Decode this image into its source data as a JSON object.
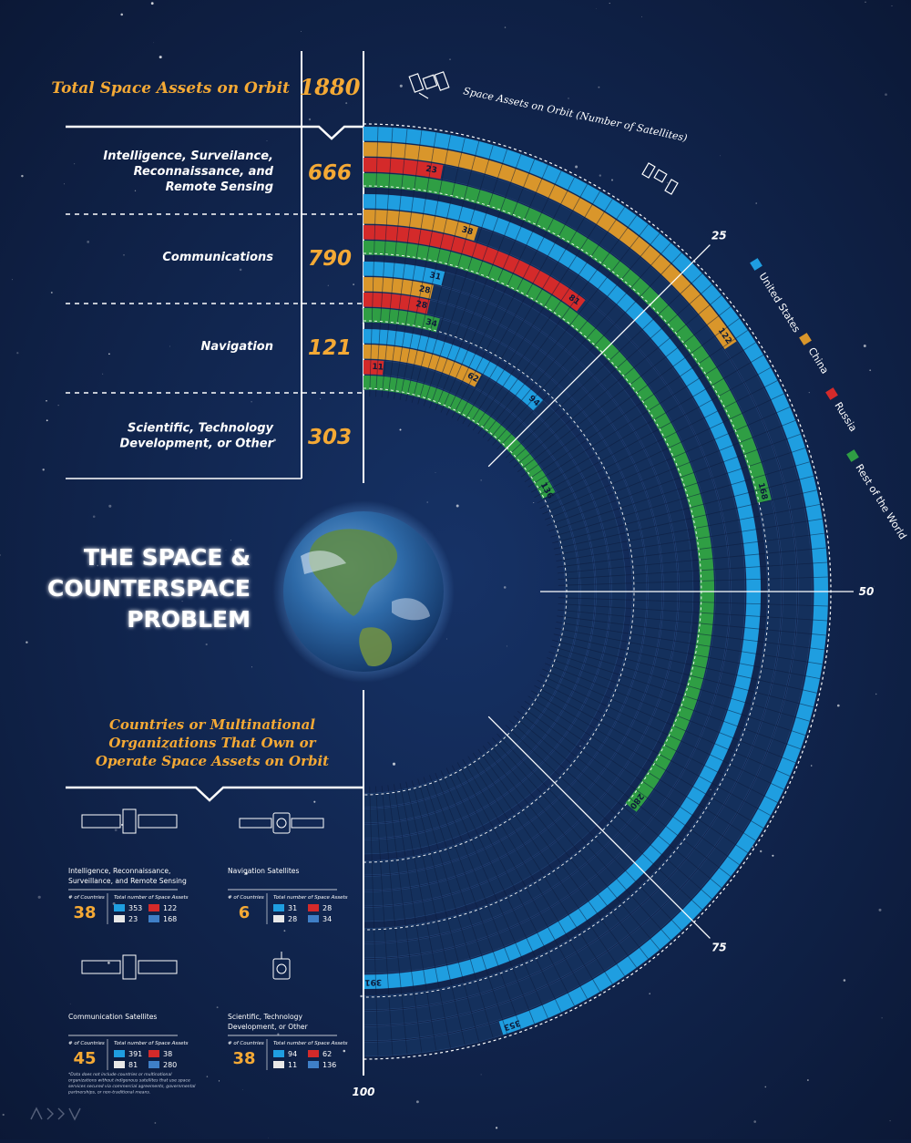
{
  "header": {
    "total_label": "Total Space Assets on Orbit",
    "total_value": "1880"
  },
  "categories": [
    {
      "key": "isr",
      "label_lines": [
        "Intelligence, Surveilance,",
        "Reconnaissance, and",
        "Remote Sensing"
      ],
      "total": "666"
    },
    {
      "key": "comm",
      "label_lines": [
        "Communications"
      ],
      "total": "790"
    },
    {
      "key": "nav",
      "label_lines": [
        "Navigation"
      ],
      "total": "121"
    },
    {
      "key": "sci",
      "label_lines": [
        "Scientific, Technology",
        "Development, or Other"
      ],
      "total": "303"
    }
  ],
  "title_lines": [
    "THE SPACE &",
    "COUNTERSPACE",
    "PROBLEM"
  ],
  "countries_heading_lines": [
    "Countries or Multinational",
    "Organizations That Own or",
    "Operate Space Assets on Orbit"
  ],
  "axis_label": "Space Assets on Orbit (Number of Satellites)",
  "legend": [
    {
      "label": "United States",
      "color": "#1f9ee0"
    },
    {
      "label": "China",
      "color": "#d9962b"
    },
    {
      "label": "Russia",
      "color": "#d42a2a"
    },
    {
      "label": "Rest of the World",
      "color": "#2f9e44"
    }
  ],
  "chart_data": {
    "type": "radial-bar",
    "title": "Space Assets on Orbit (Number of Satellites)",
    "ticks": [
      "25",
      "50",
      "75",
      "100"
    ],
    "scale_max": 100,
    "groups": [
      {
        "category": "Intelligence, Surveilance, Reconnaissance, and Remote Sensing",
        "series": [
          {
            "name": "United States",
            "value": 353,
            "label": "353"
          },
          {
            "name": "China",
            "value": 122,
            "label": "122"
          },
          {
            "name": "Russia",
            "value": 23,
            "label": "23"
          },
          {
            "name": "Rest of the World",
            "value": 168,
            "label": "168"
          }
        ]
      },
      {
        "category": "Communications",
        "series": [
          {
            "name": "United States",
            "value": 391,
            "label": "391"
          },
          {
            "name": "China",
            "value": 38,
            "label": "38"
          },
          {
            "name": "Russia",
            "value": 81,
            "label": "81"
          },
          {
            "name": "Rest of the World",
            "value": 280,
            "label": "280"
          }
        ]
      },
      {
        "category": "Navigation",
        "series": [
          {
            "name": "United States",
            "value": 31,
            "label": "31"
          },
          {
            "name": "China",
            "value": 28,
            "label": "28"
          },
          {
            "name": "Russia",
            "value": 28,
            "label": "28"
          },
          {
            "name": "Rest of the World",
            "value": 34,
            "label": "34"
          }
        ]
      },
      {
        "category": "Scientific, Technology Development, or Other",
        "series": [
          {
            "name": "United States",
            "value": 94,
            "label": "94"
          },
          {
            "name": "China",
            "value": 62,
            "label": "62"
          },
          {
            "name": "Russia",
            "value": 11,
            "label": "11"
          },
          {
            "name": "Rest of the World",
            "value": 136,
            "label": "136"
          }
        ]
      }
    ]
  },
  "cards": [
    {
      "title_lines": [
        "Intelligence, Reconnaissance,",
        "Surveillance, and Remote Sensing"
      ],
      "countries_label": "# of Countries",
      "countries": "38",
      "assets_label": "Total number of Space Assets",
      "us": "353",
      "cn": "122",
      "ru": "23",
      "other": "168"
    },
    {
      "title_lines": [
        "Navigation Satellites"
      ],
      "countries_label": "# of Countries",
      "countries": "6",
      "assets_label": "Total number of Space Assets",
      "us": "31",
      "cn": "28",
      "ru": "28",
      "other": "34"
    },
    {
      "title_lines": [
        "Communication Satellites"
      ],
      "countries_label": "# of Countries",
      "countries": "45",
      "assets_label": "Total number of Space Assets",
      "us": "391",
      "cn": "38",
      "ru": "81",
      "other": "280"
    },
    {
      "title_lines": [
        "Scientific, Technology",
        "Development, or Other"
      ],
      "countries_label": "# of Countries",
      "countries": "38",
      "assets_label": "Total number of Space Assets",
      "us": "94",
      "cn": "62",
      "ru": "11",
      "other": "136"
    }
  ],
  "footnote_lines": [
    "*Data does not include countries or multinational",
    "organizations without indigenous satellites that use space",
    "services secured via commercial agreements, governmental",
    "partnerships, or non-traditional means."
  ]
}
